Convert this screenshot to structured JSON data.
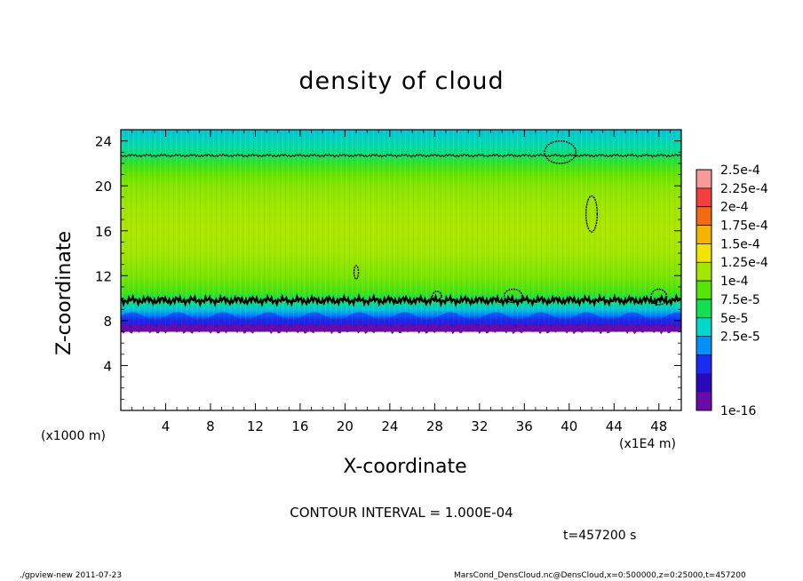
{
  "chart_data": {
    "type": "heatmap",
    "title": "density of cloud",
    "xlabel": "X-coordinate",
    "ylabel": "Z-coordinate",
    "x_unit": "(x1E4 m)",
    "y_unit": "(x1000 m)",
    "xlim": [
      0,
      50
    ],
    "ylim": [
      0,
      25
    ],
    "x_ticks": [
      "4",
      "8",
      "12",
      "16",
      "20",
      "24",
      "28",
      "32",
      "36",
      "40",
      "44",
      "48"
    ],
    "y_ticks": [
      "4",
      "8",
      "12",
      "16",
      "20",
      "24"
    ],
    "colorbar": {
      "labels": [
        "2.5e-4",
        "2.25e-4",
        "2e-4",
        "1.75e-4",
        "1.5e-4",
        "1.25e-4",
        "1e-4",
        "7.5e-5",
        "5e-5",
        "2.5e-5",
        "1e-16"
      ],
      "colors": [
        "#f89a9a",
        "#f4403c",
        "#f46a10",
        "#f4b400",
        "#f2e400",
        "#a4e600",
        "#54e400",
        "#12e050",
        "#00d8cc",
        "#0090ff",
        "#1a2cf0",
        "#2a0ab8",
        "#6a0aa8"
      ]
    },
    "profile": {
      "z": [
        7,
        7.5,
        8,
        8.5,
        9,
        9.5,
        10,
        10.5,
        12,
        14,
        16,
        18,
        20,
        21,
        22,
        22.7,
        23.5,
        25
      ],
      "value": [
        1e-16,
        1.2e-05,
        3.5e-05,
        6e-05,
        7.8e-05,
        9.2e-05,
        0.000105,
        0.00012,
        0.000135,
        0.000145,
        0.000148,
        0.000145,
        0.000138,
        0.00013,
        0.000115,
        0.0001,
        9e-05,
        7.8e-05
      ]
    },
    "contour_levels": [
      0.0001
    ],
    "contour_heights_km": [
      9.8,
      22.7
    ]
  },
  "annotations": {
    "contour_interval": "CONTOUR INTERVAL = 1.000E-04",
    "time": "t=457200 s",
    "footer_left": "./gpview-new  2011-07-23",
    "footer_right": "MarsCond_DensCloud.nc@DensCloud,x=0:500000,z=0:25000,t=457200"
  }
}
